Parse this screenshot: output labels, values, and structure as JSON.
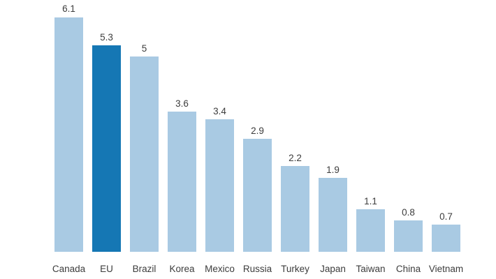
{
  "chart_data": {
    "type": "bar",
    "categories": [
      "Canada",
      "EU",
      "Brazil",
      "Korea",
      "Mexico",
      "Russia",
      "Turkey",
      "Japan",
      "Taiwan",
      "China",
      "Vietnam"
    ],
    "values": [
      6.1,
      5.3,
      5,
      3.6,
      3.4,
      2.9,
      2.2,
      1.9,
      1.1,
      0.8,
      0.7
    ],
    "value_labels": [
      "6.1",
      "5.3",
      "5",
      "3.6",
      "3.4",
      "2.9",
      "2.2",
      "1.9",
      "1.1",
      "0.8",
      "0.7"
    ],
    "highlight_category": "EU",
    "title": "",
    "xlabel": "",
    "ylabel": "",
    "ylim": [
      0,
      6.5
    ],
    "grid": false,
    "legend": false,
    "colors": {
      "bar": "#a9cae3",
      "highlight_bar": "#1577b4",
      "text": "#3c3c3c",
      "background": "#ffffff"
    }
  }
}
